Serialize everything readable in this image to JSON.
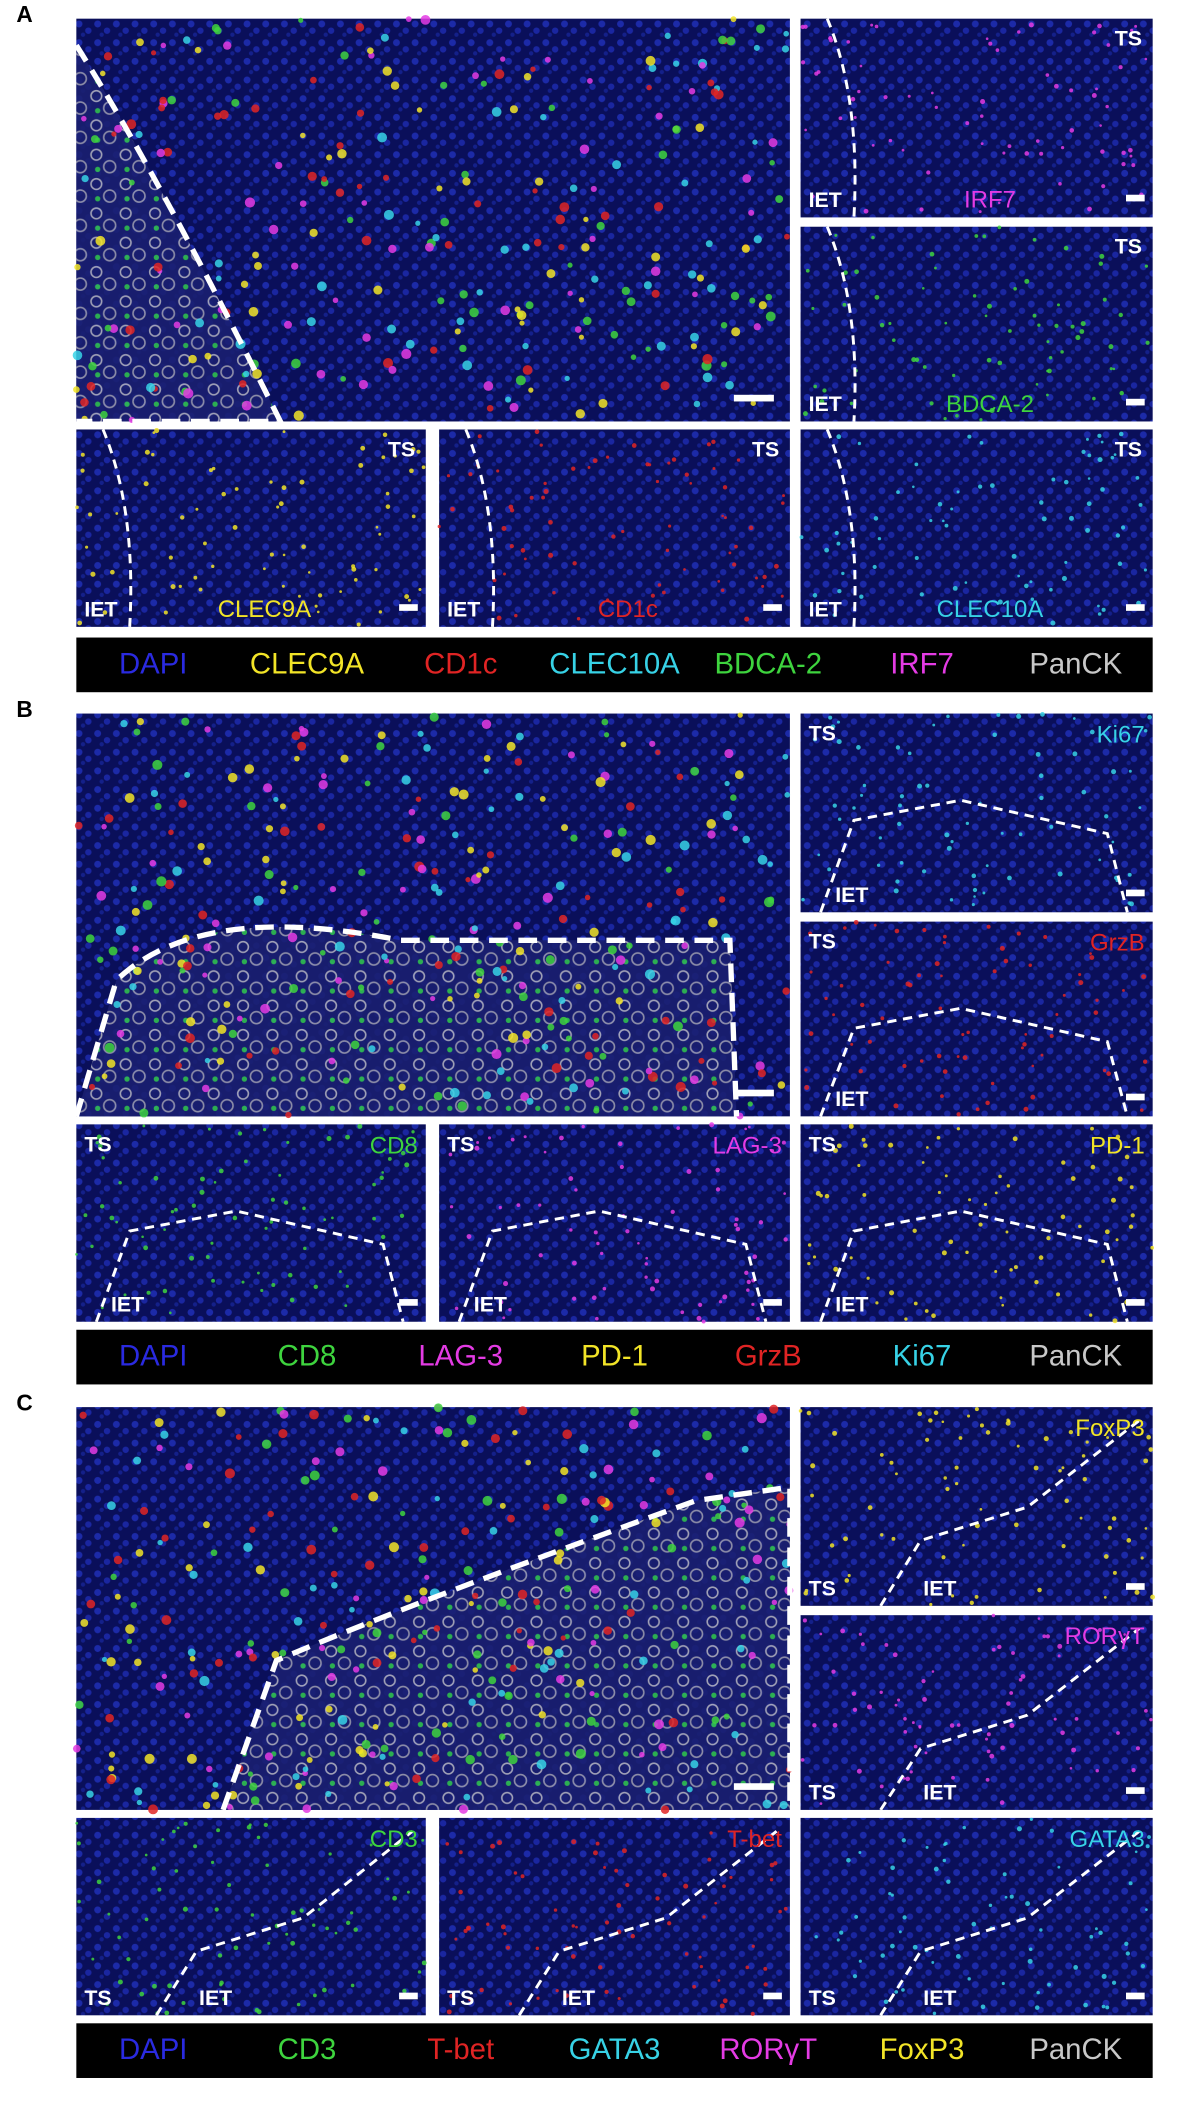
{
  "panels": [
    {
      "label": "A",
      "tiles": [
        {
          "marker": "IRF7",
          "color": "#e43be4",
          "ts": "TS",
          "iet": "IET"
        },
        {
          "marker": "BDCA-2",
          "color": "#3ed43e",
          "ts": "TS",
          "iet": "IET"
        },
        {
          "marker": "CLEC9A",
          "color": "#f2e427",
          "ts": "TS",
          "iet": "IET"
        },
        {
          "marker": "CD1c",
          "color": "#e02424",
          "ts": "TS",
          "iet": "IET"
        },
        {
          "marker": "CLEC10A",
          "color": "#37d2e6",
          "ts": "TS",
          "iet": "IET"
        }
      ],
      "legend": [
        {
          "text": "DAPI",
          "color": "#2a2ae0"
        },
        {
          "text": "CLEC9A",
          "color": "#f2e427"
        },
        {
          "text": "CD1c",
          "color": "#e02424"
        },
        {
          "text": "CLEC10A",
          "color": "#37d2e6"
        },
        {
          "text": "BDCA-2",
          "color": "#3ed43e"
        },
        {
          "text": "IRF7",
          "color": "#e43be4"
        },
        {
          "text": "PanCK",
          "color": "#c8c8c8"
        }
      ]
    },
    {
      "label": "B",
      "tiles": [
        {
          "marker": "Ki67",
          "color": "#37d2e6",
          "ts": "TS",
          "iet": "IET"
        },
        {
          "marker": "GrzB",
          "color": "#e02424",
          "ts": "TS",
          "iet": "IET"
        },
        {
          "marker": "CD8",
          "color": "#3ed43e",
          "ts": "TS",
          "iet": "IET"
        },
        {
          "marker": "LAG-3",
          "color": "#e43be4",
          "ts": "TS",
          "iet": "IET"
        },
        {
          "marker": "PD-1",
          "color": "#f2e427",
          "ts": "TS",
          "iet": "IET"
        }
      ],
      "legend": [
        {
          "text": "DAPI",
          "color": "#2a2ae0"
        },
        {
          "text": "CD8",
          "color": "#3ed43e"
        },
        {
          "text": "LAG-3",
          "color": "#e43be4"
        },
        {
          "text": "PD-1",
          "color": "#f2e427"
        },
        {
          "text": "GrzB",
          "color": "#e02424"
        },
        {
          "text": "Ki67",
          "color": "#37d2e6"
        },
        {
          "text": "PanCK",
          "color": "#c8c8c8"
        }
      ]
    },
    {
      "label": "C",
      "tiles": [
        {
          "marker": "FoxP3",
          "color": "#f2e427",
          "ts": "TS",
          "iet": "IET"
        },
        {
          "marker": "RORγT",
          "color": "#e43be4",
          "ts": "TS",
          "iet": "IET"
        },
        {
          "marker": "CD3",
          "color": "#3ed43e",
          "ts": "TS",
          "iet": "IET"
        },
        {
          "marker": "T-bet",
          "color": "#e02424",
          "ts": "TS",
          "iet": "IET"
        },
        {
          "marker": "GATA3",
          "color": "#37d2e6",
          "ts": "TS",
          "iet": "IET"
        }
      ],
      "legend": [
        {
          "text": "DAPI",
          "color": "#2a2ae0"
        },
        {
          "text": "CD3",
          "color": "#3ed43e"
        },
        {
          "text": "T-bet",
          "color": "#e02424"
        },
        {
          "text": "GATA3",
          "color": "#37d2e6"
        },
        {
          "text": "RORγT",
          "color": "#e43be4"
        },
        {
          "text": "FoxP3",
          "color": "#f2e427"
        },
        {
          "text": "PanCK",
          "color": "#c8c8c8"
        }
      ]
    }
  ]
}
